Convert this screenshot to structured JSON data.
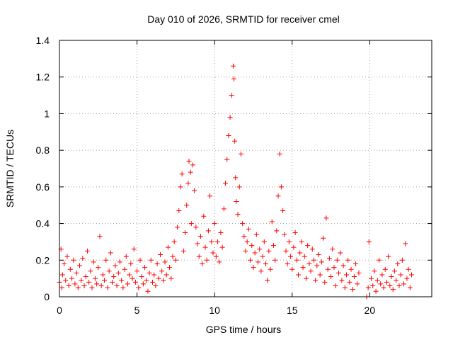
{
  "chart_data": {
    "type": "scatter",
    "title": "Day 010 of 2026, SRMTID for receiver cmel",
    "xlabel": "GPS time / hours",
    "ylabel": "SRMTID / TECUs",
    "xlim": [
      0,
      24
    ],
    "ylim": [
      0,
      1.4
    ],
    "xticks": [
      0,
      5,
      10,
      15,
      20
    ],
    "yticks": [
      0,
      0.2,
      0.4,
      0.6,
      0.8,
      1,
      1.2,
      1.4
    ],
    "xtick_labels": [
      "0",
      "5",
      "10",
      "15",
      "20"
    ],
    "ytick_labels": [
      "0",
      "0.2",
      "0.4",
      "0.6",
      "0.8",
      "1",
      "1.2",
      "1.4"
    ],
    "grid": true,
    "marker": "+",
    "color": "#ff0000",
    "points": [
      [
        0.0,
        0.08
      ],
      [
        0.1,
        0.26
      ],
      [
        0.15,
        0.05
      ],
      [
        0.2,
        0.12
      ],
      [
        0.3,
        0.18
      ],
      [
        0.4,
        0.09
      ],
      [
        0.5,
        0.22
      ],
      [
        0.6,
        0.06
      ],
      [
        0.7,
        0.15
      ],
      [
        0.8,
        0.1
      ],
      [
        0.9,
        0.2
      ],
      [
        1.0,
        0.07
      ],
      [
        1.1,
        0.13
      ],
      [
        1.2,
        0.05
      ],
      [
        1.3,
        0.17
      ],
      [
        1.4,
        0.09
      ],
      [
        1.5,
        0.21
      ],
      [
        1.6,
        0.06
      ],
      [
        1.7,
        0.11
      ],
      [
        1.8,
        0.25
      ],
      [
        1.9,
        0.08
      ],
      [
        2.0,
        0.14
      ],
      [
        2.1,
        0.05
      ],
      [
        2.2,
        0.19
      ],
      [
        2.3,
        0.1
      ],
      [
        2.4,
        0.07
      ],
      [
        2.5,
        0.16
      ],
      [
        2.6,
        0.33
      ],
      [
        2.7,
        0.06
      ],
      [
        2.8,
        0.12
      ],
      [
        2.9,
        0.09
      ],
      [
        3.0,
        0.2
      ],
      [
        3.1,
        0.05
      ],
      [
        3.2,
        0.14
      ],
      [
        3.3,
        0.24
      ],
      [
        3.4,
        0.08
      ],
      [
        3.5,
        0.11
      ],
      [
        3.6,
        0.17
      ],
      [
        3.7,
        0.06
      ],
      [
        3.8,
        0.13
      ],
      [
        3.9,
        0.19
      ],
      [
        4.0,
        0.09
      ],
      [
        4.1,
        0.05
      ],
      [
        4.2,
        0.15
      ],
      [
        4.3,
        0.22
      ],
      [
        4.4,
        0.07
      ],
      [
        4.5,
        0.12
      ],
      [
        4.6,
        0.18
      ],
      [
        4.7,
        0.1
      ],
      [
        4.8,
        0.26
      ],
      [
        4.9,
        0.08
      ],
      [
        5.0,
        0.14
      ],
      [
        5.1,
        0.05
      ],
      [
        5.2,
        0.2
      ],
      [
        5.3,
        0.11
      ],
      [
        5.4,
        0.07
      ],
      [
        5.5,
        0.16
      ],
      [
        5.6,
        0.09
      ],
      [
        5.7,
        0.03
      ],
      [
        5.8,
        0.13
      ],
      [
        5.9,
        0.2
      ],
      [
        6.0,
        0.08
      ],
      [
        6.1,
        0.12
      ],
      [
        6.2,
        0.06
      ],
      [
        6.3,
        0.18
      ],
      [
        6.4,
        0.1
      ],
      [
        6.5,
        0.23
      ],
      [
        6.6,
        0.14
      ],
      [
        6.7,
        0.09
      ],
      [
        6.8,
        0.19
      ],
      [
        6.9,
        0.12
      ],
      [
        7.0,
        0.27
      ],
      [
        7.1,
        0.16
      ],
      [
        7.2,
        0.1
      ],
      [
        7.3,
        0.22
      ],
      [
        7.4,
        0.3
      ],
      [
        7.5,
        0.2
      ],
      [
        7.6,
        0.38
      ],
      [
        7.7,
        0.47
      ],
      [
        7.8,
        0.6
      ],
      [
        7.9,
        0.67
      ],
      [
        8.0,
        0.25
      ],
      [
        8.1,
        0.35
      ],
      [
        8.2,
        0.5
      ],
      [
        8.3,
        0.62
      ],
      [
        8.35,
        0.74
      ],
      [
        8.45,
        0.68
      ],
      [
        8.5,
        0.4
      ],
      [
        8.6,
        0.72
      ],
      [
        8.7,
        0.58
      ],
      [
        8.8,
        0.38
      ],
      [
        8.9,
        0.29
      ],
      [
        9.0,
        0.22
      ],
      [
        9.1,
        0.33
      ],
      [
        9.2,
        0.18
      ],
      [
        9.3,
        0.44
      ],
      [
        9.4,
        0.27
      ],
      [
        9.5,
        0.2
      ],
      [
        9.6,
        0.36
      ],
      [
        9.7,
        0.55
      ],
      [
        9.8,
        0.3
      ],
      [
        9.9,
        0.24
      ],
      [
        10.0,
        0.4
      ],
      [
        10.1,
        0.22
      ],
      [
        10.2,
        0.3
      ],
      [
        10.3,
        0.19
      ],
      [
        10.4,
        0.35
      ],
      [
        10.5,
        0.27
      ],
      [
        10.6,
        0.48
      ],
      [
        10.7,
        0.62
      ],
      [
        10.8,
        0.75
      ],
      [
        10.9,
        0.88
      ],
      [
        11.0,
        0.98
      ],
      [
        11.1,
        1.1
      ],
      [
        11.2,
        1.26
      ],
      [
        11.25,
        1.19
      ],
      [
        11.3,
        0.85
      ],
      [
        11.35,
        0.65
      ],
      [
        11.4,
        0.52
      ],
      [
        11.5,
        0.45
      ],
      [
        11.6,
        0.6
      ],
      [
        11.7,
        0.78
      ],
      [
        11.8,
        0.4
      ],
      [
        11.9,
        0.33
      ],
      [
        12.0,
        0.25
      ],
      [
        12.1,
        0.3
      ],
      [
        12.2,
        0.37
      ],
      [
        12.3,
        0.2
      ],
      [
        12.4,
        0.28
      ],
      [
        12.5,
        0.16
      ],
      [
        12.6,
        0.24
      ],
      [
        12.7,
        0.34
      ],
      [
        12.8,
        0.19
      ],
      [
        12.9,
        0.26
      ],
      [
        13.0,
        0.14
      ],
      [
        13.1,
        0.22
      ],
      [
        13.2,
        0.3
      ],
      [
        13.3,
        0.18
      ],
      [
        13.4,
        0.09
      ],
      [
        13.5,
        0.25
      ],
      [
        13.6,
        0.15
      ],
      [
        13.7,
        0.41
      ],
      [
        13.8,
        0.28
      ],
      [
        13.9,
        0.2
      ],
      [
        14.0,
        0.36
      ],
      [
        14.1,
        0.55
      ],
      [
        14.2,
        0.78
      ],
      [
        14.3,
        0.6
      ],
      [
        14.4,
        0.47
      ],
      [
        14.5,
        0.34
      ],
      [
        14.6,
        0.25
      ],
      [
        14.7,
        0.18
      ],
      [
        14.8,
        0.3
      ],
      [
        14.9,
        0.22
      ],
      [
        15.0,
        0.15
      ],
      [
        15.1,
        0.27
      ],
      [
        15.2,
        0.35
      ],
      [
        15.3,
        0.2
      ],
      [
        15.4,
        0.12
      ],
      [
        15.5,
        0.24
      ],
      [
        15.6,
        0.3
      ],
      [
        15.7,
        0.16
      ],
      [
        15.8,
        0.22
      ],
      [
        15.9,
        0.1
      ],
      [
        16.0,
        0.28
      ],
      [
        16.1,
        0.18
      ],
      [
        16.2,
        0.14
      ],
      [
        16.3,
        0.26
      ],
      [
        16.4,
        0.2
      ],
      [
        16.5,
        0.09
      ],
      [
        16.6,
        0.17
      ],
      [
        16.7,
        0.23
      ],
      [
        16.8,
        0.12
      ],
      [
        16.9,
        0.19
      ],
      [
        17.0,
        0.32
      ],
      [
        17.1,
        0.08
      ],
      [
        17.2,
        0.43
      ],
      [
        17.3,
        0.15
      ],
      [
        17.4,
        0.21
      ],
      [
        17.5,
        0.11
      ],
      [
        17.6,
        0.26
      ],
      [
        17.7,
        0.16
      ],
      [
        17.8,
        0.06
      ],
      [
        17.9,
        0.2
      ],
      [
        18.0,
        0.13
      ],
      [
        18.1,
        0.24
      ],
      [
        18.2,
        0.09
      ],
      [
        18.3,
        0.17
      ],
      [
        18.4,
        0.05
      ],
      [
        18.5,
        0.12
      ],
      [
        18.6,
        0.2
      ],
      [
        18.7,
        0.08
      ],
      [
        18.8,
        0.15
      ],
      [
        18.9,
        0.04
      ],
      [
        19.0,
        0.11
      ],
      [
        19.1,
        0.18
      ],
      [
        19.2,
        0.07
      ],
      [
        19.3,
        0.13
      ],
      [
        19.8,
        0.0
      ],
      [
        19.9,
        0.05
      ],
      [
        19.95,
        0.3
      ],
      [
        20.1,
        0.1
      ],
      [
        20.2,
        0.06
      ],
      [
        20.3,
        0.14
      ],
      [
        20.4,
        0.03
      ],
      [
        20.5,
        0.09
      ],
      [
        20.6,
        0.2
      ],
      [
        20.7,
        0.07
      ],
      [
        20.8,
        0.12
      ],
      [
        20.9,
        0.05
      ],
      [
        21.0,
        0.15
      ],
      [
        21.1,
        0.08
      ],
      [
        21.2,
        0.22
      ],
      [
        21.3,
        0.06
      ],
      [
        21.4,
        0.11
      ],
      [
        21.5,
        0.04
      ],
      [
        21.6,
        0.14
      ],
      [
        21.7,
        0.09
      ],
      [
        21.8,
        0.18
      ],
      [
        21.9,
        0.06
      ],
      [
        22.0,
        0.12
      ],
      [
        22.1,
        0.2
      ],
      [
        22.2,
        0.07
      ],
      [
        22.3,
        0.29
      ],
      [
        22.4,
        0.1
      ],
      [
        22.5,
        0.15
      ],
      [
        22.6,
        0.05
      ],
      [
        22.7,
        0.12
      ]
    ]
  }
}
